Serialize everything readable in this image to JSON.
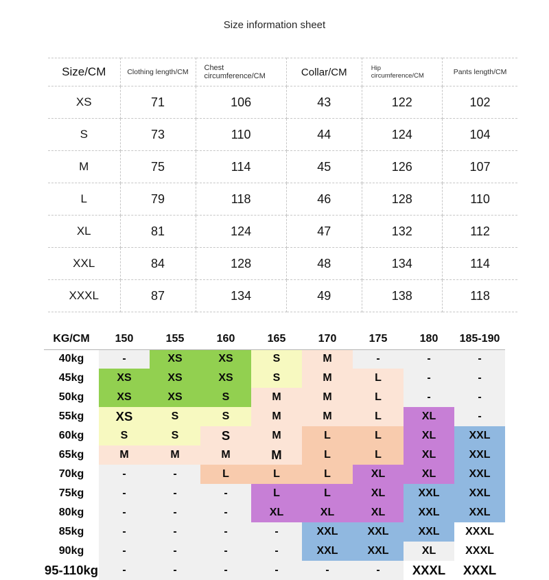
{
  "title": "Size information sheet",
  "size_table": {
    "headers": [
      "Size/CM",
      "Clothing length/CM",
      "Chest circumference/CM",
      "Collar/CM",
      "Hip circumference/CM",
      "Pants length/CM"
    ],
    "rows": [
      [
        "XS",
        "71",
        "106",
        "43",
        "122",
        "102"
      ],
      [
        "S",
        "73",
        "110",
        "44",
        "124",
        "104"
      ],
      [
        "M",
        "75",
        "114",
        "45",
        "126",
        "107"
      ],
      [
        "L",
        "79",
        "118",
        "46",
        "128",
        "110"
      ],
      [
        "XL",
        "81",
        "124",
        "47",
        "132",
        "112"
      ],
      [
        "XXL",
        "84",
        "128",
        "48",
        "134",
        "114"
      ],
      [
        "XXXL",
        "87",
        "134",
        "49",
        "138",
        "118"
      ]
    ]
  },
  "fit_table": {
    "headers": [
      "KG/CM",
      "150",
      "155",
      "160",
      "165",
      "170",
      "175",
      "180",
      "185-190"
    ],
    "rows": [
      {
        "label": "40kg",
        "cells": [
          {
            "t": "-",
            "c": "e"
          },
          {
            "t": "XS",
            "c": "g"
          },
          {
            "t": "XS",
            "c": "g"
          },
          {
            "t": "S",
            "c": "y"
          },
          {
            "t": "M",
            "c": "m"
          },
          {
            "t": "-",
            "c": "e"
          },
          {
            "t": "-",
            "c": "e"
          },
          {
            "t": "-",
            "c": "e"
          }
        ]
      },
      {
        "label": "45kg",
        "cells": [
          {
            "t": "XS",
            "c": "g"
          },
          {
            "t": "XS",
            "c": "g"
          },
          {
            "t": "XS",
            "c": "g"
          },
          {
            "t": "S",
            "c": "y"
          },
          {
            "t": "M",
            "c": "m"
          },
          {
            "t": "L",
            "c": "m"
          },
          {
            "t": "-",
            "c": "e"
          },
          {
            "t": "-",
            "c": "e"
          }
        ]
      },
      {
        "label": "50kg",
        "cells": [
          {
            "t": "XS",
            "c": "g"
          },
          {
            "t": "XS",
            "c": "g"
          },
          {
            "t": "S",
            "c": "g"
          },
          {
            "t": "M",
            "c": "m"
          },
          {
            "t": "M",
            "c": "m"
          },
          {
            "t": "L",
            "c": "m"
          },
          {
            "t": "-",
            "c": "e"
          },
          {
            "t": "-",
            "c": "e"
          }
        ]
      },
      {
        "label": "55kg",
        "cells": [
          {
            "t": "XS",
            "c": "y",
            "em": true
          },
          {
            "t": "S",
            "c": "y"
          },
          {
            "t": "S",
            "c": "y"
          },
          {
            "t": "M",
            "c": "m"
          },
          {
            "t": "M",
            "c": "m"
          },
          {
            "t": "L",
            "c": "m"
          },
          {
            "t": "XL",
            "c": "v"
          },
          {
            "t": "-",
            "c": "e"
          }
        ]
      },
      {
        "label": "60kg",
        "cells": [
          {
            "t": "S",
            "c": "y"
          },
          {
            "t": "S",
            "c": "y"
          },
          {
            "t": "S",
            "c": "m",
            "em": true
          },
          {
            "t": "M",
            "c": "m"
          },
          {
            "t": "L",
            "c": "p"
          },
          {
            "t": "L",
            "c": "p"
          },
          {
            "t": "XL",
            "c": "v"
          },
          {
            "t": "XXL",
            "c": "b"
          }
        ]
      },
      {
        "label": "65kg",
        "cells": [
          {
            "t": "M",
            "c": "m"
          },
          {
            "t": "M",
            "c": "m"
          },
          {
            "t": "M",
            "c": "m"
          },
          {
            "t": "M",
            "c": "m",
            "em": true
          },
          {
            "t": "L",
            "c": "p"
          },
          {
            "t": "L",
            "c": "p"
          },
          {
            "t": "XL",
            "c": "v"
          },
          {
            "t": "XXL",
            "c": "b"
          }
        ]
      },
      {
        "label": "70kg",
        "cells": [
          {
            "t": "-",
            "c": "e"
          },
          {
            "t": "-",
            "c": "e"
          },
          {
            "t": "L",
            "c": "p"
          },
          {
            "t": "L",
            "c": "p"
          },
          {
            "t": "L",
            "c": "p"
          },
          {
            "t": "XL",
            "c": "v"
          },
          {
            "t": "XL",
            "c": "v"
          },
          {
            "t": "XXL",
            "c": "b"
          }
        ]
      },
      {
        "label": "75kg",
        "cells": [
          {
            "t": "-",
            "c": "e"
          },
          {
            "t": "-",
            "c": "e"
          },
          {
            "t": "-",
            "c": "e"
          },
          {
            "t": "L",
            "c": "v"
          },
          {
            "t": "L",
            "c": "v"
          },
          {
            "t": "XL",
            "c": "v"
          },
          {
            "t": "XXL",
            "c": "b"
          },
          {
            "t": "XXL",
            "c": "b"
          }
        ]
      },
      {
        "label": "80kg",
        "cells": [
          {
            "t": "-",
            "c": "e"
          },
          {
            "t": "-",
            "c": "e"
          },
          {
            "t": "-",
            "c": "e"
          },
          {
            "t": "XL",
            "c": "v"
          },
          {
            "t": "XL",
            "c": "v"
          },
          {
            "t": "XL",
            "c": "v"
          },
          {
            "t": "XXL",
            "c": "b"
          },
          {
            "t": "XXL",
            "c": "b"
          }
        ]
      },
      {
        "label": "85kg",
        "cells": [
          {
            "t": "-",
            "c": "e"
          },
          {
            "t": "-",
            "c": "e"
          },
          {
            "t": "-",
            "c": "e"
          },
          {
            "t": "-",
            "c": "e"
          },
          {
            "t": "XXL",
            "c": "b"
          },
          {
            "t": "XXL",
            "c": "b"
          },
          {
            "t": "XXL",
            "c": "b"
          },
          {
            "t": "XXXL",
            "c": "w"
          }
        ]
      },
      {
        "label": "90kg",
        "cells": [
          {
            "t": "-",
            "c": "e"
          },
          {
            "t": "-",
            "c": "e"
          },
          {
            "t": "-",
            "c": "e"
          },
          {
            "t": "-",
            "c": "e"
          },
          {
            "t": "XXL",
            "c": "b"
          },
          {
            "t": "XXL",
            "c": "b"
          },
          {
            "t": "XL",
            "c": "e"
          },
          {
            "t": "XXXL",
            "c": "w"
          }
        ]
      },
      {
        "label": "95-110kg",
        "big": true,
        "cells": [
          {
            "t": "-",
            "c": "e"
          },
          {
            "t": "-",
            "c": "e"
          },
          {
            "t": "-",
            "c": "e"
          },
          {
            "t": "-",
            "c": "e"
          },
          {
            "t": "-",
            "c": "e"
          },
          {
            "t": "-",
            "c": "e"
          },
          {
            "t": "XXXL",
            "c": "w",
            "em": true
          },
          {
            "t": "XXXL",
            "c": "w",
            "em": true
          }
        ]
      }
    ]
  },
  "colors": {
    "g": "#92d050",
    "y": "#f7f9c0",
    "m": "#fce4d6",
    "p": "#f8cbad",
    "v": "#c77fd6",
    "b": "#90b8e0",
    "e": "#f0f0f0",
    "w": "#ffffff"
  }
}
